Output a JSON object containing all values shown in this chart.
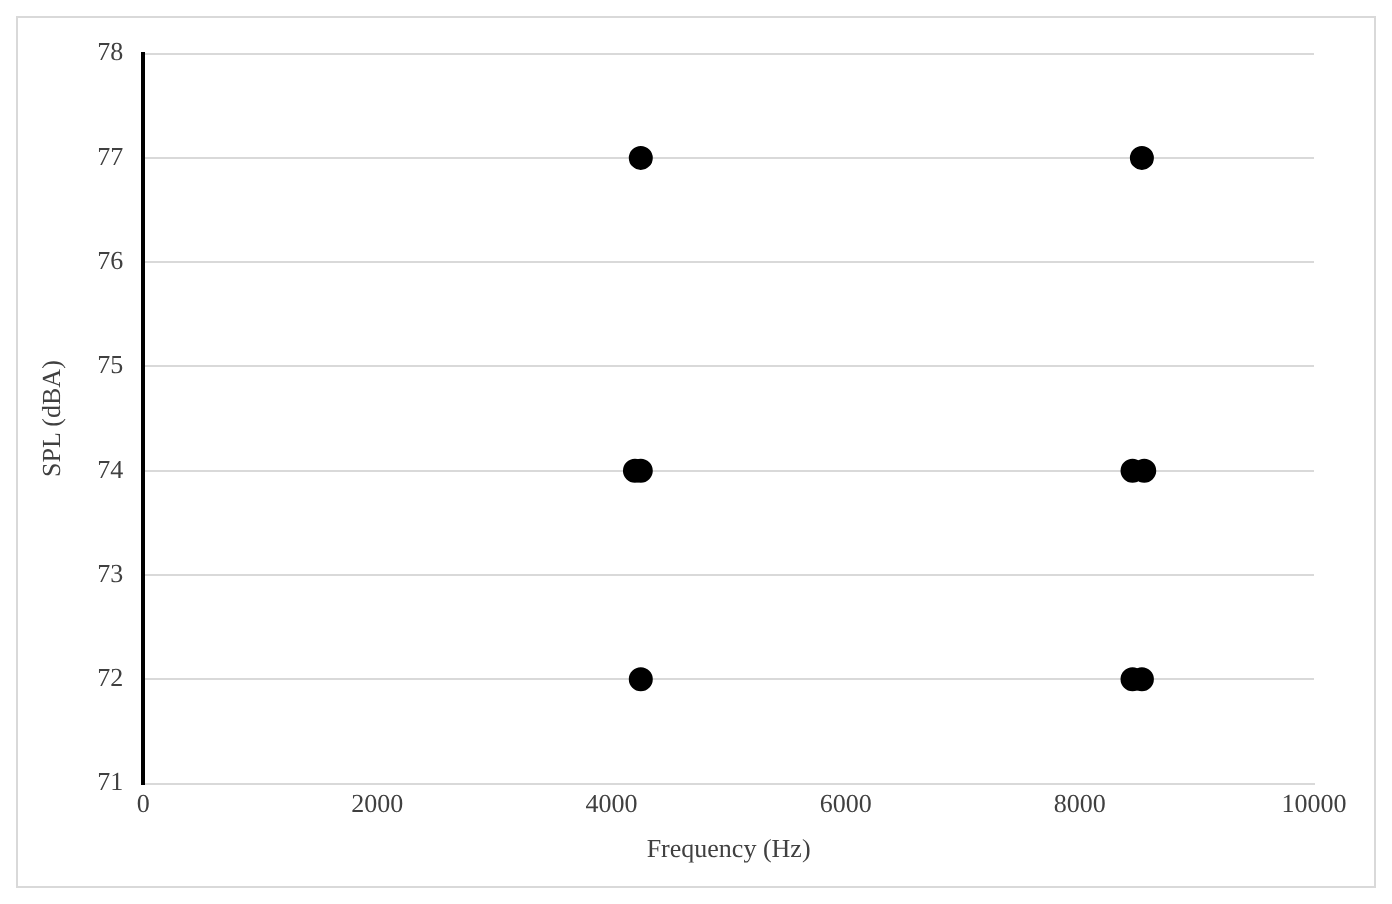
{
  "chart_data": {
    "type": "scatter",
    "xlabel": "Frequency (Hz)",
    "ylabel": "SPL (dBA)",
    "x": [
      4250,
      8530,
      4200,
      4250,
      8450,
      8550,
      4250,
      8450,
      8530
    ],
    "values": [
      77,
      77,
      74,
      74,
      74,
      74,
      72,
      72,
      72
    ],
    "color": "#000000",
    "marker": "circle",
    "xlim": [
      0,
      10000
    ],
    "xticks": [
      0,
      2000,
      4000,
      6000,
      8000,
      10000
    ],
    "ylim": [
      71,
      78
    ],
    "yticks": [
      71,
      72,
      73,
      74,
      75,
      76,
      77,
      78
    ],
    "grid": "y",
    "legend": false
  }
}
